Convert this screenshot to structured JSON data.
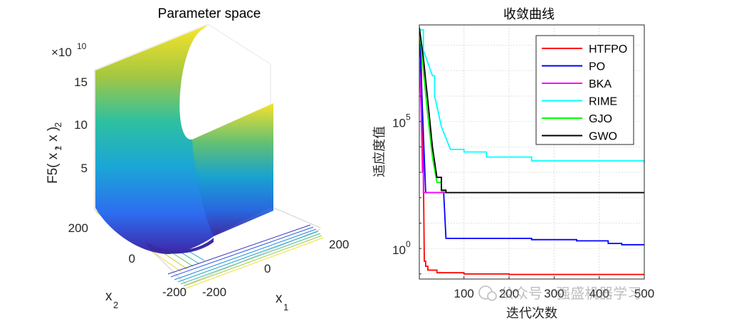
{
  "chart_data": [
    {
      "type": "surface",
      "title": "Parameter space",
      "xlabel": "x",
      "xlabel_sub": "1",
      "ylabel": "x",
      "ylabel_sub": "2",
      "zlabel": "F5( x  , x  )",
      "zlabel_sub1": "1",
      "zlabel_sub2": "2",
      "exponent_prefix": "×10",
      "exponent_power": "10",
      "x_ticks": [
        "-200",
        "0",
        "200"
      ],
      "y_ticks": [
        "-200",
        "0",
        "200"
      ],
      "z_ticks": [
        "5",
        "10",
        "15"
      ],
      "xlim": [
        -200,
        200
      ],
      "ylim": [
        -200,
        200
      ],
      "zlim": [
        0,
        160000000000.0
      ],
      "colormap": "parula"
    },
    {
      "type": "line",
      "yscale": "log",
      "title": "收敛曲线",
      "xlabel": "迭代次数",
      "ylabel": "适应度值",
      "xlim": [
        1,
        500
      ],
      "ylim_exponent": [
        -1.2,
        8.8
      ],
      "x_ticks": [
        "100",
        "200",
        "300",
        "400",
        "500"
      ],
      "y_ticks": [
        {
          "base": "10",
          "power": "0",
          "exp": 0
        },
        {
          "base": "10",
          "power": "5",
          "exp": 5
        }
      ],
      "legend_position": "top-right",
      "series": [
        {
          "name": "HTFPO",
          "color": "#ff0000",
          "log10_points": [
            [
              1,
              8.6
            ],
            [
              5,
              7.4
            ],
            [
              8,
              5.0
            ],
            [
              10,
              3.0
            ],
            [
              12,
              -0.5
            ],
            [
              15,
              -0.7
            ],
            [
              20,
              -0.85
            ],
            [
              40,
              -0.95
            ],
            [
              100,
              -1.0
            ],
            [
              200,
              -1.02
            ],
            [
              500,
              -1.05
            ]
          ]
        },
        {
          "name": "PO",
          "color": "#0000ff",
          "log10_points": [
            [
              1,
              8.6
            ],
            [
              15,
              2.2
            ],
            [
              30,
              2.2
            ],
            [
              50,
              2.2
            ],
            [
              55,
              2.2
            ],
            [
              60,
              0.4
            ],
            [
              150,
              0.4
            ],
            [
              250,
              0.35
            ],
            [
              350,
              0.3
            ],
            [
              420,
              0.2
            ],
            [
              450,
              0.15
            ],
            [
              500,
              0.15
            ]
          ]
        },
        {
          "name": "BKA",
          "color": "#ff00ff",
          "log10_points": [
            [
              1,
              7.4
            ],
            [
              5,
              5.5
            ],
            [
              8,
              3.0
            ],
            [
              10,
              2.2
            ],
            [
              500,
              2.2
            ]
          ]
        },
        {
          "name": "RIME",
          "color": "#00ffff",
          "log10_points": [
            [
              1,
              8.6
            ],
            [
              10,
              7.8
            ],
            [
              30,
              6.8
            ],
            [
              35,
              6.0
            ],
            [
              50,
              4.8
            ],
            [
              70,
              3.9
            ],
            [
              100,
              3.8
            ],
            [
              150,
              3.6
            ],
            [
              250,
              3.45
            ],
            [
              500,
              3.35
            ]
          ]
        },
        {
          "name": "GJO",
          "color": "#00ff00",
          "log10_points": [
            [
              1,
              8.7
            ],
            [
              10,
              7.0
            ],
            [
              20,
              5.2
            ],
            [
              30,
              3.6
            ],
            [
              40,
              2.6
            ],
            [
              50,
              2.25
            ],
            [
              60,
              2.2
            ],
            [
              500,
              2.2
            ]
          ]
        },
        {
          "name": "GWO",
          "color": "#000000",
          "log10_points": [
            [
              1,
              8.7
            ],
            [
              10,
              7.5
            ],
            [
              20,
              5.8
            ],
            [
              30,
              4.0
            ],
            [
              40,
              2.8
            ],
            [
              50,
              2.3
            ],
            [
              60,
              2.2
            ],
            [
              500,
              2.2
            ]
          ]
        }
      ]
    }
  ],
  "watermark": "公众号 · 强盛机器学习"
}
